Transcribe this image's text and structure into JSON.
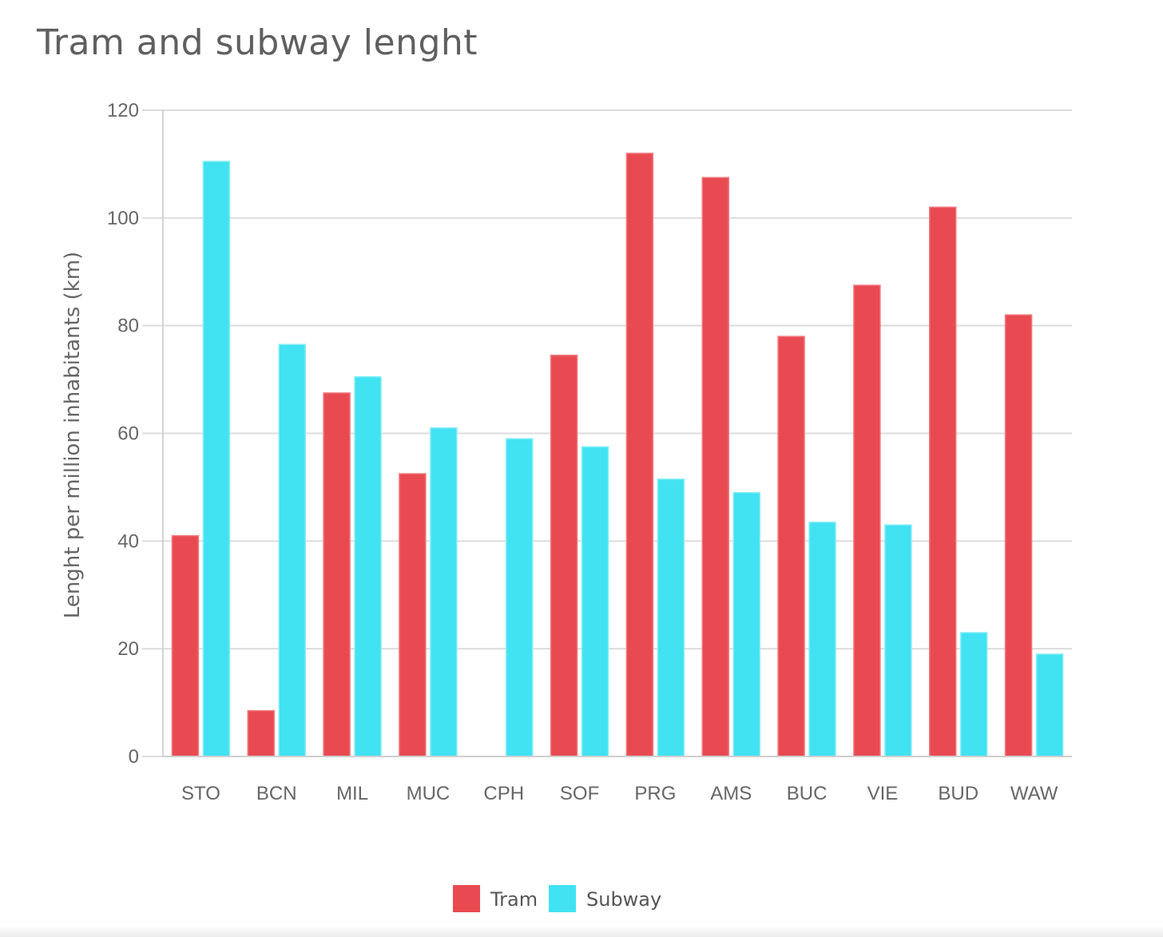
{
  "chart_data": {
    "type": "bar",
    "title": "Tram and subway lenght",
    "xlabel": "",
    "ylabel": "Lenght per million inhabitants (km)",
    "ylim": [
      0,
      120
    ],
    "yticks": [
      0,
      20,
      40,
      60,
      80,
      100,
      120
    ],
    "grid": true,
    "legend_position": "bottom",
    "categories": [
      "STO",
      "BCN",
      "MIL",
      "MUC",
      "CPH",
      "SOF",
      "PRG",
      "AMS",
      "BUC",
      "VIE",
      "BUD",
      "WAW"
    ],
    "series": [
      {
        "name": "Tram",
        "color": "#e94a51",
        "values": [
          41,
          8.5,
          67.5,
          52.5,
          0,
          74.5,
          112,
          107.5,
          78,
          87.5,
          102,
          82
        ]
      },
      {
        "name": "Subway",
        "color": "#41e2f2",
        "values": [
          110.5,
          76.5,
          70.5,
          61,
          59,
          57.5,
          51.5,
          49,
          43.5,
          43,
          23,
          19
        ]
      }
    ]
  }
}
